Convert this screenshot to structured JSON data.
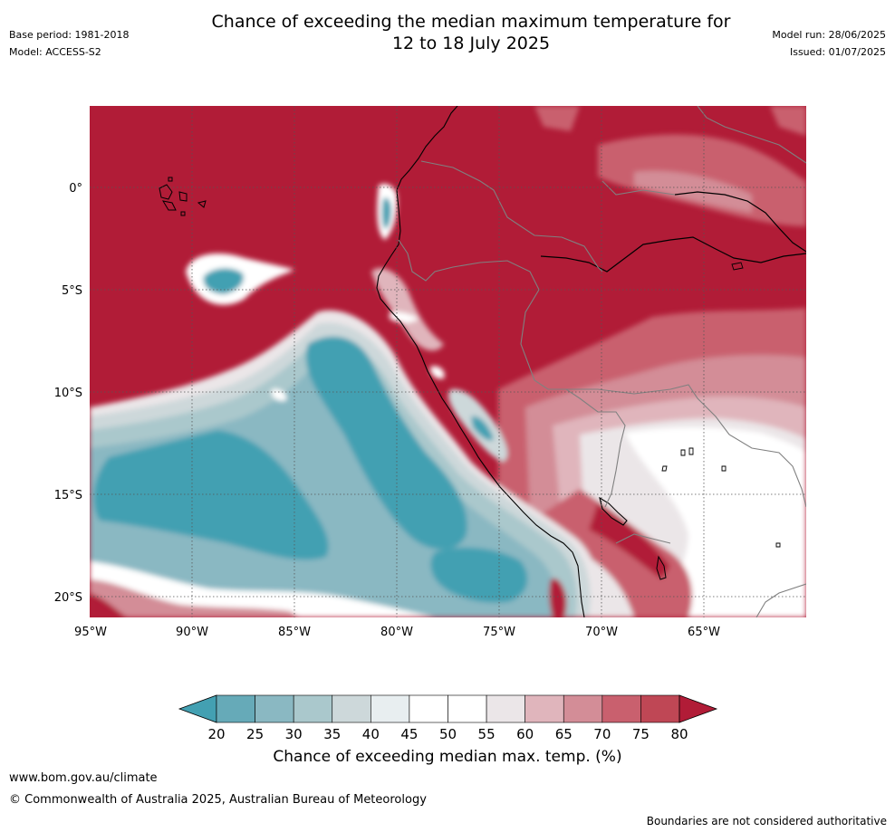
{
  "title": {
    "line1": "Chance of exceeding the median maximum temperature for",
    "line2": "12 to 18 July 2025"
  },
  "meta": {
    "base_period": "Base period: 1981-2018",
    "model": "Model: ACCESS-S2",
    "model_run": "Model run: 28/06/2025",
    "issued": "Issued: 01/07/2025"
  },
  "map": {
    "x_ticks": [
      "95°W",
      "90°W",
      "85°W",
      "80°W",
      "75°W",
      "70°W",
      "65°W"
    ],
    "y_ticks": [
      "0°",
      "5°S",
      "10°S",
      "15°S",
      "20°S"
    ],
    "gridlines": true,
    "dominant_value_pct": 80
  },
  "colorbar": {
    "ticks": [
      "20",
      "25",
      "30",
      "35",
      "40",
      "45",
      "50",
      "55",
      "60",
      "65",
      "70",
      "75",
      "80"
    ],
    "colors": [
      "#43a0b2",
      "#66aab8",
      "#8ab8c2",
      "#aac8cc",
      "#cdd8da",
      "#e8eef0",
      "#ffffff",
      "#ffffff",
      "#ebe6e8",
      "#e0b5bc",
      "#d38d97",
      "#c9606e",
      "#bf4755",
      "#b11c37"
    ],
    "label": "Chance of exceeding median max. temp. (%)",
    "extend": "both"
  },
  "footer": {
    "website": "www.bom.gov.au/climate",
    "copyright": "© Commonwealth of Australia 2025, Australian Bureau of Meteorology",
    "disclaimer": "Boundaries are not considered authoritative"
  }
}
